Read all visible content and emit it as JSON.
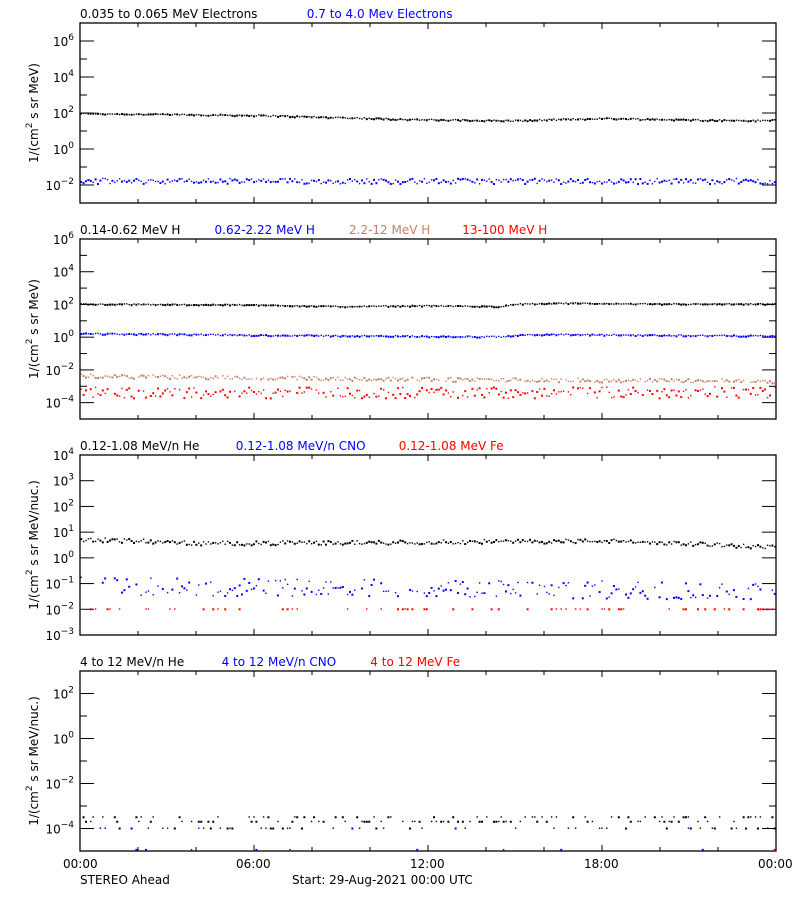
{
  "chart_data": [
    {
      "type": "scatter",
      "panel": 1,
      "legend": [
        {
          "label": "0.035 to 0.065 MeV Electrons",
          "color": "#000000"
        },
        {
          "label": "0.7 to 4.0 Mev Electrons",
          "color": "#0000ff"
        }
      ],
      "ylabel": "1/(cm^2 s sr MeV)",
      "yscale": "log",
      "ylim_exp": [
        -3,
        7
      ],
      "yticks_exp": [
        -2,
        0,
        2,
        4,
        6
      ],
      "ytick_labels": [
        "10^-2",
        "10^0",
        "10^2",
        "10^4",
        "10^6"
      ],
      "series": [
        {
          "name": "0.035 to 0.065 MeV Electrons",
          "color": "#000000",
          "profile": [
            [
              0,
              1.95
            ],
            [
              6,
              1.85
            ],
            [
              12,
              1.6
            ],
            [
              15,
              1.55
            ],
            [
              18,
              1.68
            ],
            [
              21,
              1.6
            ],
            [
              23.5,
              1.55
            ],
            [
              24,
              1.6
            ]
          ],
          "noise": 0.04,
          "dropout": 0.0
        },
        {
          "name": "0.7 to 4.0 Mev Electrons",
          "color": "#0000ff",
          "profile": [
            [
              0,
              -1.8
            ],
            [
              12,
              -1.8
            ],
            [
              24,
              -1.8
            ]
          ],
          "noise": 0.15,
          "dropout": 0.0
        }
      ]
    },
    {
      "type": "scatter",
      "panel": 2,
      "legend": [
        {
          "label": "0.14-0.62 MeV H",
          "color": "#000000"
        },
        {
          "label": "0.62-2.22 MeV H",
          "color": "#0000ff"
        },
        {
          "label": "2.2-12 MeV H",
          "color": "#c87f68"
        },
        {
          "label": "13-100 MeV H",
          "color": "#ff0000"
        }
      ],
      "ylabel": "1/(cm^2 s sr MeV)",
      "yscale": "log",
      "ylim_exp": [
        -5,
        6
      ],
      "yticks_exp": [
        -4,
        -2,
        0,
        2,
        4,
        6
      ],
      "ytick_labels": [
        "10^-4",
        "10^-2",
        "10^0",
        "10^2",
        "10^4",
        "10^6"
      ],
      "series": [
        {
          "name": "0.14-0.62 MeV H",
          "color": "#000000",
          "profile": [
            [
              0,
              2.0
            ],
            [
              6,
              1.95
            ],
            [
              9,
              1.85
            ],
            [
              12,
              1.9
            ],
            [
              14.5,
              1.85
            ],
            [
              15,
              2.0
            ],
            [
              17,
              2.05
            ],
            [
              20,
              2.0
            ],
            [
              24,
              2.0
            ]
          ],
          "noise": 0.03,
          "dropout": 0.0
        },
        {
          "name": "0.62-2.22 MeV H",
          "color": "#0000ff",
          "profile": [
            [
              0,
              0.2
            ],
            [
              6,
              0.1
            ],
            [
              14.5,
              0.0
            ],
            [
              15.5,
              0.15
            ],
            [
              24,
              0.05
            ]
          ],
          "noise": 0.04,
          "dropout": 0.0
        },
        {
          "name": "2.2-12 MeV H",
          "color": "#c87f68",
          "profile": [
            [
              0,
              -2.4
            ],
            [
              12,
              -2.6
            ],
            [
              24,
              -2.7
            ]
          ],
          "noise": 0.12,
          "dropout": 0.05
        },
        {
          "name": "13-100 MeV H",
          "color": "#ff0000",
          "profile": [
            [
              0,
              -3.4
            ],
            [
              24,
              -3.4
            ]
          ],
          "noise": 0.35,
          "dropout": 0.15
        }
      ]
    },
    {
      "type": "scatter",
      "panel": 3,
      "legend": [
        {
          "label": "0.12-1.08 MeV/n He",
          "color": "#000000"
        },
        {
          "label": "0.12-1.08 MeV/n CNO",
          "color": "#0000ff"
        },
        {
          "label": "0.12-1.08 MeV Fe",
          "color": "#ff0000"
        }
      ],
      "ylabel": "1/(cm^2 s sr MeV/nuc.)",
      "yscale": "log",
      "ylim_exp": [
        -3,
        4
      ],
      "yticks_exp": [
        -3,
        -2,
        -1,
        0,
        1,
        2,
        3,
        4
      ],
      "ytick_labels": [
        "10^-3",
        "10^-2",
        "10^-1",
        "10^0",
        "10^1",
        "10^2",
        "10^3",
        "10^4"
      ],
      "series": [
        {
          "name": "0.12-1.08 MeV/n He",
          "color": "#000000",
          "profile": [
            [
              0,
              0.7
            ],
            [
              2,
              0.65
            ],
            [
              4,
              0.55
            ],
            [
              12,
              0.6
            ],
            [
              18,
              0.65
            ],
            [
              22,
              0.5
            ],
            [
              24,
              0.4
            ]
          ],
          "noise": 0.08,
          "dropout": 0.0
        },
        {
          "name": "0.12-1.08 MeV/n CNO",
          "color": "#0000ff",
          "profile": [
            [
              0,
              -1.1
            ],
            [
              24,
              -1.3
            ]
          ],
          "noise": 0.35,
          "dropout": 0.3
        },
        {
          "name": "0.12-1.08 MeV Fe",
          "color": "#ff0000",
          "profile": [
            [
              0,
              -2.0
            ],
            [
              24,
              -2.0
            ]
          ],
          "noise": 0.0,
          "dropout": 0.75
        }
      ]
    },
    {
      "type": "scatter",
      "panel": 4,
      "legend": [
        {
          "label": "4 to 12 MeV/n He",
          "color": "#000000"
        },
        {
          "label": "4 to 12 MeV/n CNO",
          "color": "#0000ff"
        },
        {
          "label": "4 to 12 MeV Fe",
          "color": "#ff0000"
        }
      ],
      "ylabel": "1/(cm^2 s sr MeV/nuc.)",
      "yscale": "log",
      "ylim_exp": [
        -5,
        3
      ],
      "yticks_exp": [
        -4,
        -2,
        0,
        2
      ],
      "ytick_labels": [
        "10^-4",
        "10^-2",
        "10^0",
        "10^2"
      ],
      "series": [
        {
          "name": "4 to 12 MeV/n He",
          "color": "#000000",
          "profile": [
            [
              0,
              -3.85
            ],
            [
              24,
              -3.85
            ]
          ],
          "noise": 0.25,
          "dropout": 0.45,
          "quantized": [
            -4.0,
            -3.7,
            -3.5
          ]
        },
        {
          "name": "4 to 12 MeV/n CNO",
          "color": "#0000ff",
          "profile": [
            [
              0,
              -4.0
            ],
            [
              24,
              -4.0
            ]
          ],
          "noise": 0.0,
          "dropout": 0.9,
          "quantized": [
            -4.0,
            -4.95
          ]
        },
        {
          "name": "4 to 12 MeV Fe",
          "color": "#ff0000",
          "points": [
            [
              23.95,
              -4.95
            ]
          ]
        }
      ]
    }
  ],
  "xaxis": {
    "range_hours": [
      0,
      24
    ],
    "major_ticks": [
      0,
      6,
      12,
      18,
      24
    ],
    "tick_labels": [
      "00:00",
      "06:00",
      "12:00",
      "18:00",
      "00:00"
    ],
    "minor_ticks": [
      2,
      4,
      8,
      10,
      14,
      16,
      20,
      22
    ]
  },
  "footer": {
    "spacecraft": "STEREO Ahead",
    "start": "Start: 29-Aug-2021 00:00 UTC"
  }
}
